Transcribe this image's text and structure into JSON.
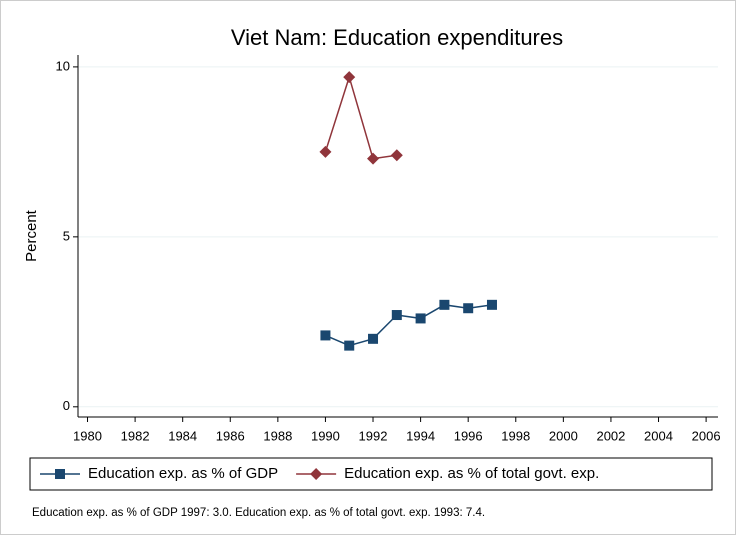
{
  "chart_data": {
    "type": "line",
    "title": "Viet Nam: Education expenditures",
    "ylabel": "Percent",
    "note": "Education exp. as % of GDP 1997: 3.0. Education exp. as % of total govt. exp. 1993: 7.4.",
    "x": [
      1990,
      1991,
      1992,
      1993,
      1994,
      1995,
      1996,
      1997
    ],
    "series": [
      {
        "name": "Education exp. as % of GDP",
        "color": "#1a476f",
        "marker": "square",
        "values": [
          2.1,
          1.8,
          2.0,
          2.7,
          2.6,
          3.0,
          2.9,
          3.0
        ]
      },
      {
        "name": "Education exp. as % of total govt. exp.",
        "color": "#90353b",
        "marker": "diamond",
        "values": [
          7.5,
          9.7,
          7.3,
          7.4,
          null,
          null,
          null,
          null
        ]
      }
    ],
    "xlim": [
      1979.6,
      2006.5
    ],
    "xticks": [
      1980,
      1982,
      1984,
      1986,
      1988,
      1990,
      1992,
      1994,
      1996,
      1998,
      2000,
      2002,
      2004,
      2006
    ],
    "ylim": [
      -0.3,
      10.35
    ],
    "yticks": [
      0,
      5,
      10
    ],
    "grid": true
  }
}
